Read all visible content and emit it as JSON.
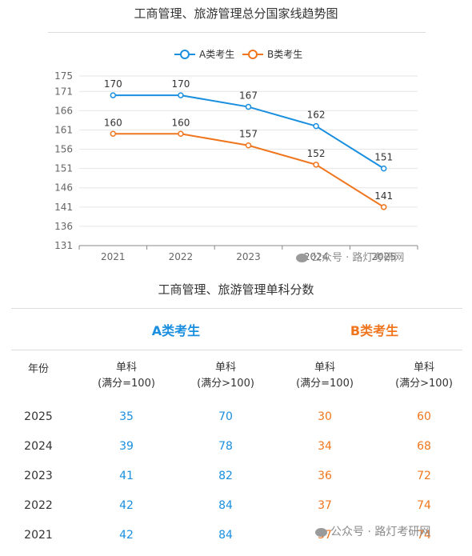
{
  "chart_data": {
    "type": "line",
    "title": "工商管理、旅游管理总分国家线趋势图",
    "categories": [
      "2021",
      "2022",
      "2023",
      "2024",
      "2025"
    ],
    "ylim": [
      131,
      175
    ],
    "yticks": [
      175,
      171,
      166,
      161,
      156,
      151,
      146,
      141,
      136,
      131
    ],
    "grid": true,
    "legend": "top-center",
    "series": [
      {
        "name": "A类考生",
        "values": [
          170,
          170,
          167,
          162,
          151
        ],
        "color": "#1a8fe0"
      },
      {
        "name": "B类考生",
        "values": [
          160,
          160,
          157,
          152,
          141
        ],
        "color": "#f0761e"
      }
    ]
  },
  "table": {
    "title": "工商管理、旅游管理单科分数",
    "group_a": "A类考生",
    "group_b": "B类考生",
    "year_header": "年份",
    "col_headers": [
      {
        "line1": "单科",
        "line2": "(满分=100)"
      },
      {
        "line1": "单科",
        "line2": "(满分>100)"
      },
      {
        "line1": "单科",
        "line2": "(满分=100)"
      },
      {
        "line1": "单科",
        "line2": "(满分>100)"
      }
    ],
    "rows": [
      {
        "year": "2025",
        "a1": "35",
        "a2": "70",
        "b1": "30",
        "b2": "60"
      },
      {
        "year": "2024",
        "a1": "39",
        "a2": "78",
        "b1": "34",
        "b2": "68"
      },
      {
        "year": "2023",
        "a1": "41",
        "a2": "82",
        "b1": "36",
        "b2": "72"
      },
      {
        "year": "2022",
        "a1": "42",
        "a2": "84",
        "b1": "37",
        "b2": "74"
      },
      {
        "year": "2021",
        "a1": "42",
        "a2": "84",
        "b1": "37",
        "b2": "74"
      }
    ]
  },
  "watermark": "公众号 · 路灯考研网"
}
